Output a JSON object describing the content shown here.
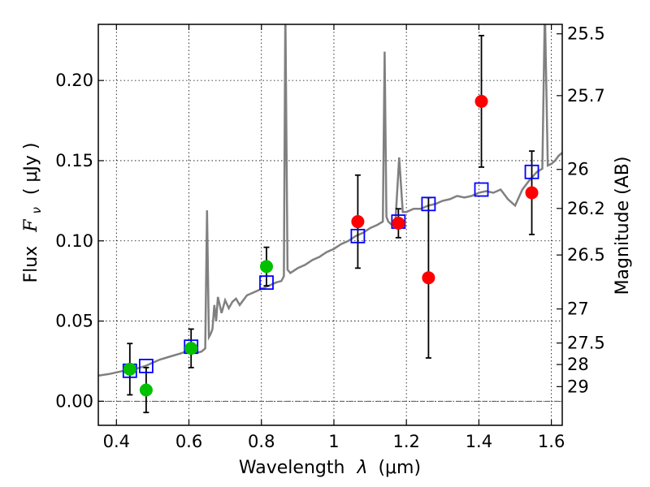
{
  "chart_data": {
    "type": "scatter",
    "xlabel_text": "Wavelength",
    "xlabel_var": "λ",
    "xlabel_unit": "(μm)",
    "ylabel_text": "Flux",
    "ylabel_var": "F",
    "ylabel_sub": "ν",
    "ylabel_unit": "( μJy )",
    "y2label": "Magnitude (AB)",
    "xlim": [
      0.35,
      1.63
    ],
    "ylim": [
      -0.015,
      0.235
    ],
    "x_ticks": [
      0.4,
      0.6,
      0.8,
      1.0,
      1.2,
      1.4,
      1.6
    ],
    "x_tick_labels": [
      "0.4",
      "0.6",
      "0.8",
      "1",
      "1.2",
      "1.4",
      "1.6"
    ],
    "y_ticks": [
      0.0,
      0.05,
      0.1,
      0.15,
      0.2
    ],
    "y_tick_labels": [
      "0.00",
      "0.05",
      "0.10",
      "0.15",
      "0.20"
    ],
    "mag_ticks": [
      25.5,
      25.7,
      26,
      26.2,
      26.5,
      27,
      27.5,
      28,
      29
    ],
    "mag_tick_labels": [
      "25.5",
      "25.7",
      "26",
      "26.2",
      "26.5",
      "27",
      "27.5",
      "28",
      "29"
    ],
    "colors": {
      "spectrum": "#808080",
      "green": "#00c000",
      "red": "#ff0000",
      "model": "#0000ff",
      "errorbar": "#000000",
      "zero_line": "#555555"
    },
    "series": [
      {
        "name": "observed_optical",
        "color_key": "green",
        "points": [
          {
            "x": 0.437,
            "y": 0.02,
            "err": 0.016
          },
          {
            "x": 0.482,
            "y": 0.007,
            "err": 0.014
          },
          {
            "x": 0.606,
            "y": 0.033,
            "err": 0.012
          },
          {
            "x": 0.814,
            "y": 0.084,
            "err": 0.012
          }
        ]
      },
      {
        "name": "observed_nir",
        "color_key": "red",
        "points": [
          {
            "x": 1.066,
            "y": 0.112,
            "err": 0.029
          },
          {
            "x": 1.178,
            "y": 0.111,
            "err": 0.009
          },
          {
            "x": 1.261,
            "y": 0.077,
            "err": 0.05
          },
          {
            "x": 1.407,
            "y": 0.187,
            "err": 0.041
          },
          {
            "x": 1.546,
            "y": 0.13,
            "err": 0.026
          }
        ]
      }
    ],
    "model_points": [
      {
        "x": 0.437,
        "y": 0.019
      },
      {
        "x": 0.482,
        "y": 0.022
      },
      {
        "x": 0.606,
        "y": 0.034
      },
      {
        "x": 0.814,
        "y": 0.074
      },
      {
        "x": 1.066,
        "y": 0.103
      },
      {
        "x": 1.178,
        "y": 0.112
      },
      {
        "x": 1.261,
        "y": 0.123
      },
      {
        "x": 1.407,
        "y": 0.132
      },
      {
        "x": 1.546,
        "y": 0.143
      }
    ],
    "spectrum": [
      [
        0.35,
        0.016
      ],
      [
        0.38,
        0.017
      ],
      [
        0.4,
        0.018
      ],
      [
        0.42,
        0.019
      ],
      [
        0.45,
        0.02
      ],
      [
        0.48,
        0.022
      ],
      [
        0.5,
        0.024
      ],
      [
        0.52,
        0.026
      ],
      [
        0.55,
        0.028
      ],
      [
        0.58,
        0.03
      ],
      [
        0.6,
        0.032
      ],
      [
        0.62,
        0.03
      ],
      [
        0.635,
        0.031
      ],
      [
        0.645,
        0.033
      ],
      [
        0.65,
        0.119
      ],
      [
        0.655,
        0.04
      ],
      [
        0.66,
        0.042
      ],
      [
        0.665,
        0.045
      ],
      [
        0.67,
        0.06
      ],
      [
        0.675,
        0.05
      ],
      [
        0.68,
        0.065
      ],
      [
        0.69,
        0.055
      ],
      [
        0.7,
        0.063
      ],
      [
        0.71,
        0.058
      ],
      [
        0.72,
        0.062
      ],
      [
        0.73,
        0.064
      ],
      [
        0.74,
        0.06
      ],
      [
        0.76,
        0.066
      ],
      [
        0.78,
        0.068
      ],
      [
        0.8,
        0.07
      ],
      [
        0.82,
        0.072
      ],
      [
        0.84,
        0.074
      ],
      [
        0.855,
        0.075
      ],
      [
        0.862,
        0.078
      ],
      [
        0.866,
        0.245
      ],
      [
        0.872,
        0.082
      ],
      [
        0.88,
        0.08
      ],
      [
        0.9,
        0.083
      ],
      [
        0.92,
        0.085
      ],
      [
        0.94,
        0.088
      ],
      [
        0.96,
        0.09
      ],
      [
        0.98,
        0.093
      ],
      [
        1.0,
        0.095
      ],
      [
        1.02,
        0.098
      ],
      [
        1.04,
        0.1
      ],
      [
        1.06,
        0.103
      ],
      [
        1.08,
        0.105
      ],
      [
        1.1,
        0.108
      ],
      [
        1.12,
        0.11
      ],
      [
        1.135,
        0.112
      ],
      [
        1.14,
        0.218
      ],
      [
        1.145,
        0.115
      ],
      [
        1.15,
        0.112
      ],
      [
        1.16,
        0.11
      ],
      [
        1.17,
        0.113
      ],
      [
        1.18,
        0.152
      ],
      [
        1.19,
        0.118
      ],
      [
        1.2,
        0.118
      ],
      [
        1.22,
        0.12
      ],
      [
        1.24,
        0.12
      ],
      [
        1.26,
        0.122
      ],
      [
        1.28,
        0.123
      ],
      [
        1.3,
        0.125
      ],
      [
        1.32,
        0.126
      ],
      [
        1.34,
        0.128
      ],
      [
        1.36,
        0.127
      ],
      [
        1.38,
        0.128
      ],
      [
        1.4,
        0.13
      ],
      [
        1.42,
        0.131
      ],
      [
        1.44,
        0.13
      ],
      [
        1.46,
        0.132
      ],
      [
        1.48,
        0.126
      ],
      [
        1.5,
        0.122
      ],
      [
        1.52,
        0.132
      ],
      [
        1.54,
        0.138
      ],
      [
        1.56,
        0.143
      ],
      [
        1.575,
        0.145
      ],
      [
        1.582,
        0.245
      ],
      [
        1.59,
        0.147
      ],
      [
        1.6,
        0.148
      ],
      [
        1.61,
        0.15
      ],
      [
        1.62,
        0.153
      ],
      [
        1.63,
        0.155
      ]
    ]
  }
}
